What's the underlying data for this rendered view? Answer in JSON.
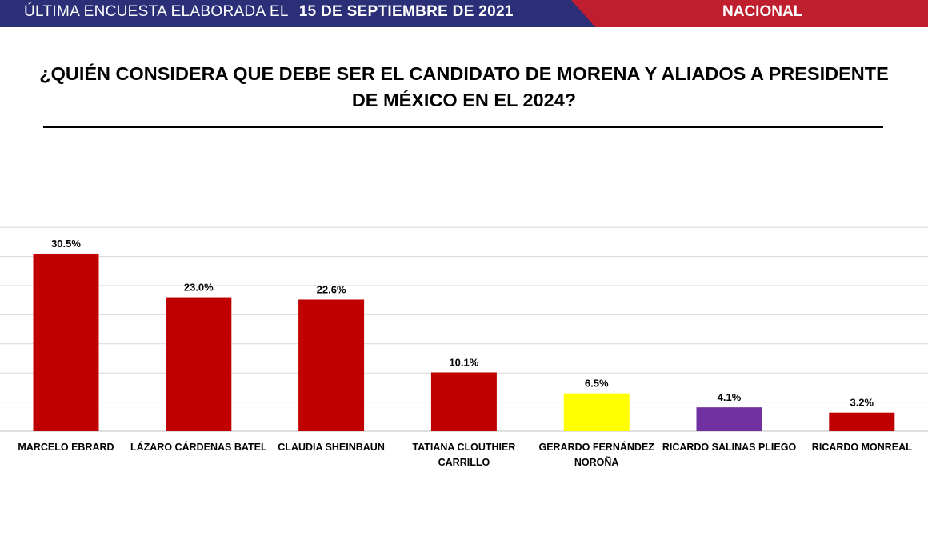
{
  "banner": {
    "left_prefix": "ÚLTIMA ENCUESTA ELABORADA EL",
    "left_date": "15 DE SEPTIEMBRE DE 2021",
    "right_label": "NACIONAL",
    "colors": {
      "navy": "#2a2f78",
      "red": "#be1e2d"
    }
  },
  "title": {
    "line1": "¿QUIÉN CONSIDERA QUE DEBE SER EL CANDIDATO DE MORENA Y ALIADOS A PRESIDENTE",
    "line2": "DE MÉXICO EN EL 2024?"
  },
  "chart_data": {
    "type": "bar",
    "title": "¿QUIÉN CONSIDERA QUE DEBE SER EL CANDIDATO DE MORENA Y ALIADOS A PRESIDENTE DE MÉXICO EN EL 2024?",
    "categories": [
      [
        "MARCELO EBRARD"
      ],
      [
        "LÁZARO CÁRDENAS BATEL"
      ],
      [
        "CLAUDIA SHEINBAUN"
      ],
      [
        "TATIANA CLOUTHIER",
        "CARRILLO"
      ],
      [
        "GERARDO FERNÁNDEZ",
        "NOROÑA"
      ],
      [
        "RICARDO SALINAS PLIEGO"
      ],
      [
        "RICARDO MONREAL"
      ]
    ],
    "values": [
      30.5,
      23.0,
      22.6,
      10.1,
      6.5,
      4.1,
      3.2
    ],
    "data_labels": [
      "30.5%",
      "23.0%",
      "22.6%",
      "10.1%",
      "6.5%",
      "4.1%",
      "3.2%"
    ],
    "colors": [
      "#c00000",
      "#c00000",
      "#c00000",
      "#c00000",
      "#ffff00",
      "#7030a0",
      "#c00000"
    ],
    "ylim": [
      0,
      35
    ],
    "grid": true,
    "grid_step": 5,
    "xlabel": "",
    "ylabel": ""
  }
}
